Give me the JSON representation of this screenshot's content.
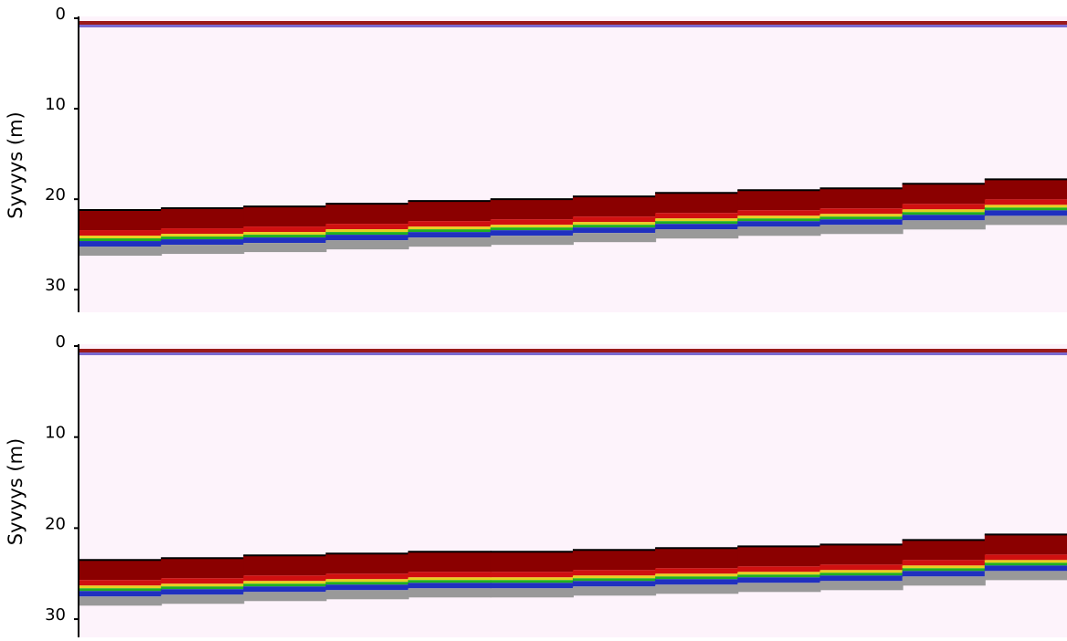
{
  "chart_data": [
    {
      "type": "echogram",
      "ylabel": "Syvyys (m)",
      "ylim": [
        0,
        32.5
      ],
      "yticks": [
        0,
        10,
        20,
        30
      ],
      "values": [
        21.2,
        21,
        20.8,
        20.5,
        20.2,
        20,
        19.7,
        19.3,
        19,
        18.8,
        18.3,
        17.8
      ]
    },
    {
      "type": "echogram",
      "ylabel": "Syvyys (m)",
      "ylim": [
        0,
        32
      ],
      "yticks": [
        0,
        10,
        20,
        30
      ],
      "values": [
        23.5,
        23.3,
        23,
        22.8,
        22.6,
        22.6,
        22.4,
        22.2,
        22,
        21.8,
        21.3,
        20.7
      ]
    }
  ]
}
